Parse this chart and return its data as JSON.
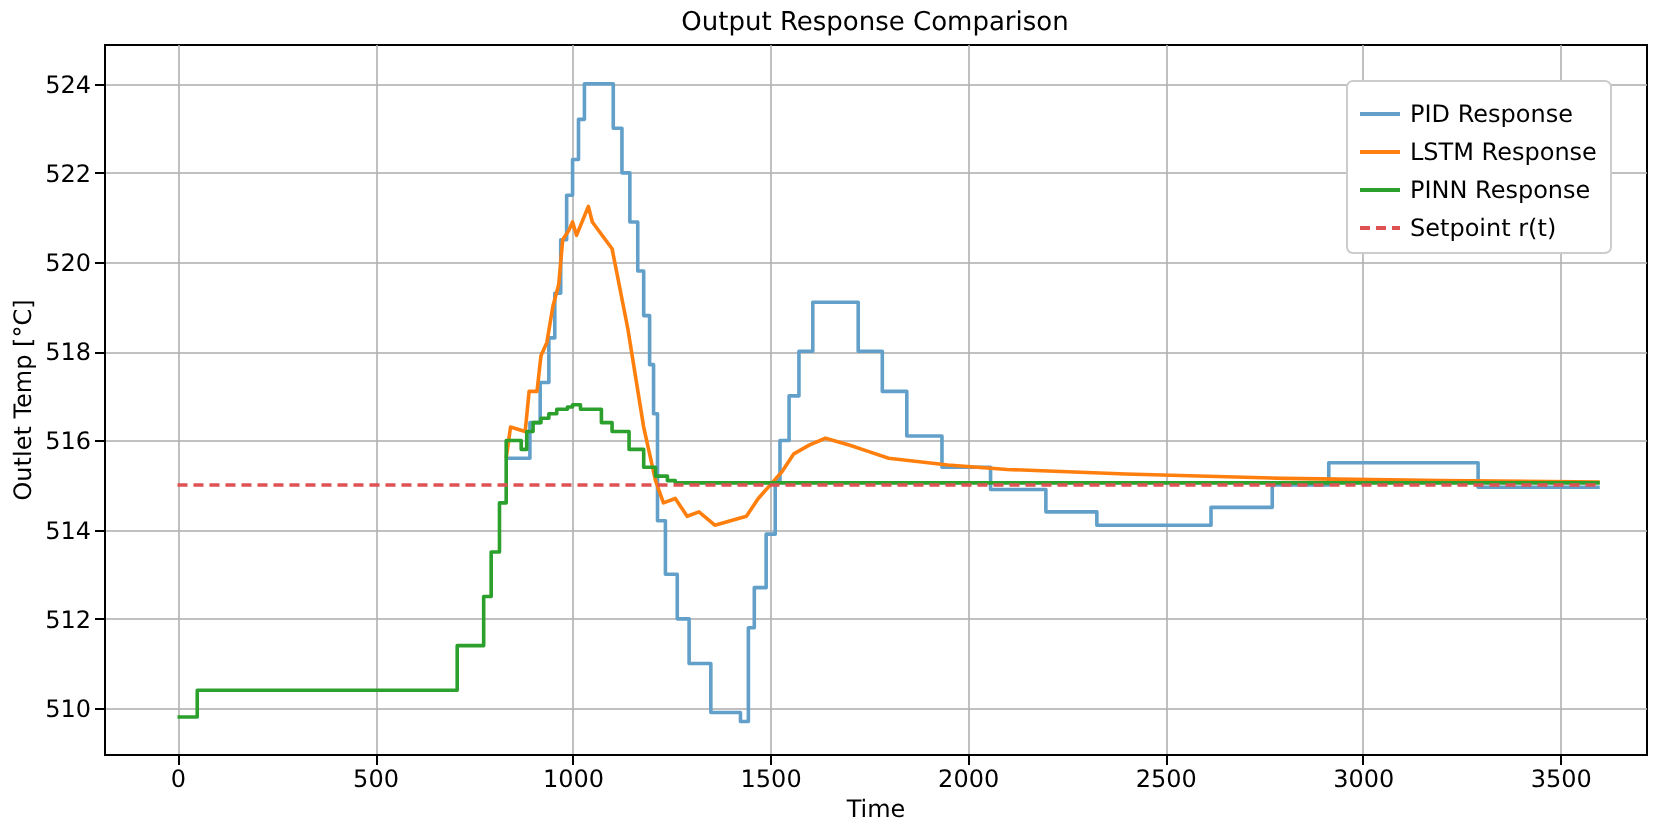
{
  "chart_data": {
    "type": "line",
    "title": "Output Response Comparison",
    "xlabel": "Time",
    "ylabel": "Outlet Temp [°C]",
    "xlim": [
      -186,
      3717
    ],
    "ylim": [
      508.97,
      524.89
    ],
    "xticks": [
      0,
      500,
      1000,
      1500,
      2000,
      2500,
      3000,
      3500
    ],
    "yticks": [
      510,
      512,
      514,
      516,
      518,
      520,
      522,
      524
    ],
    "grid": true,
    "legend": "top right",
    "series": [
      {
        "name": "PID Response",
        "type": "step",
        "color": "#62a0ca",
        "x": [
          832,
          892,
          918,
          940,
          955,
          970,
          985,
          1000,
          1015,
          1030,
          1103,
          1125,
          1145,
          1165,
          1180,
          1195,
          1205,
          1215,
          1235,
          1265,
          1295,
          1350,
          1425,
          1445,
          1460,
          1490,
          1513,
          1525,
          1548,
          1573,
          1608,
          1723,
          1784,
          1846,
          1935,
          2058,
          2198,
          2327,
          2616,
          2771,
          2914,
          3292,
          3600
        ],
        "values": [
          515.6,
          516.4,
          517.3,
          518.3,
          519.3,
          520.5,
          521.5,
          522.3,
          523.2,
          524.0,
          523.0,
          522.0,
          520.9,
          519.8,
          518.8,
          517.7,
          516.6,
          514.2,
          513.0,
          512.0,
          511.0,
          509.9,
          509.7,
          511.8,
          512.7,
          513.9,
          515.1,
          516.0,
          517.0,
          518.0,
          519.1,
          518.0,
          517.1,
          516.1,
          515.4,
          514.9,
          514.4,
          514.1,
          514.5,
          515.0,
          515.5,
          514.95,
          514.95
        ]
      },
      {
        "name": "LSTM Response",
        "type": "line",
        "color": "#ff7f0e",
        "x": [
          832,
          843,
          880,
          890,
          910,
          920,
          935,
          950,
          965,
          975,
          990,
          1000,
          1010,
          1040,
          1050,
          1100,
          1140,
          1180,
          1210,
          1230,
          1260,
          1290,
          1320,
          1360,
          1400,
          1440,
          1470,
          1500,
          1530,
          1560,
          1600,
          1640,
          1700,
          1750,
          1800,
          1850,
          1950,
          2100,
          2400,
          2800,
          3200,
          3600
        ],
        "values": [
          515.6,
          516.3,
          516.2,
          517.1,
          517.1,
          517.9,
          518.2,
          519.0,
          519.5,
          520.5,
          520.7,
          520.9,
          520.6,
          521.25,
          520.9,
          520.3,
          518.5,
          516.3,
          515.1,
          514.6,
          514.7,
          514.3,
          514.4,
          514.1,
          514.2,
          514.3,
          514.7,
          515.0,
          515.3,
          515.7,
          515.9,
          516.05,
          515.9,
          515.75,
          515.6,
          515.55,
          515.45,
          515.35,
          515.25,
          515.15,
          515.1,
          515.07
        ]
      },
      {
        "name": "PINN Response",
        "type": "step",
        "color": "#2ca02c",
        "x": [
          0,
          50,
          708,
          775,
          794,
          815,
          832,
          870,
          884,
          900,
          920,
          940,
          960,
          987,
          1000,
          1020,
          1073,
          1100,
          1143,
          1180,
          1210,
          1240,
          1260,
          3600
        ],
        "values": [
          509.8,
          510.4,
          511.4,
          512.5,
          513.5,
          514.6,
          516.0,
          515.8,
          516.2,
          516.4,
          516.5,
          516.6,
          516.7,
          516.75,
          516.8,
          516.7,
          516.4,
          516.2,
          515.8,
          515.4,
          515.2,
          515.1,
          515.05,
          515.05
        ]
      },
      {
        "name": "Setpoint r(t)",
        "type": "line",
        "line_style": "dashed",
        "color": "#de5253",
        "x": [
          0,
          3600
        ],
        "values": [
          515,
          515
        ]
      }
    ]
  }
}
